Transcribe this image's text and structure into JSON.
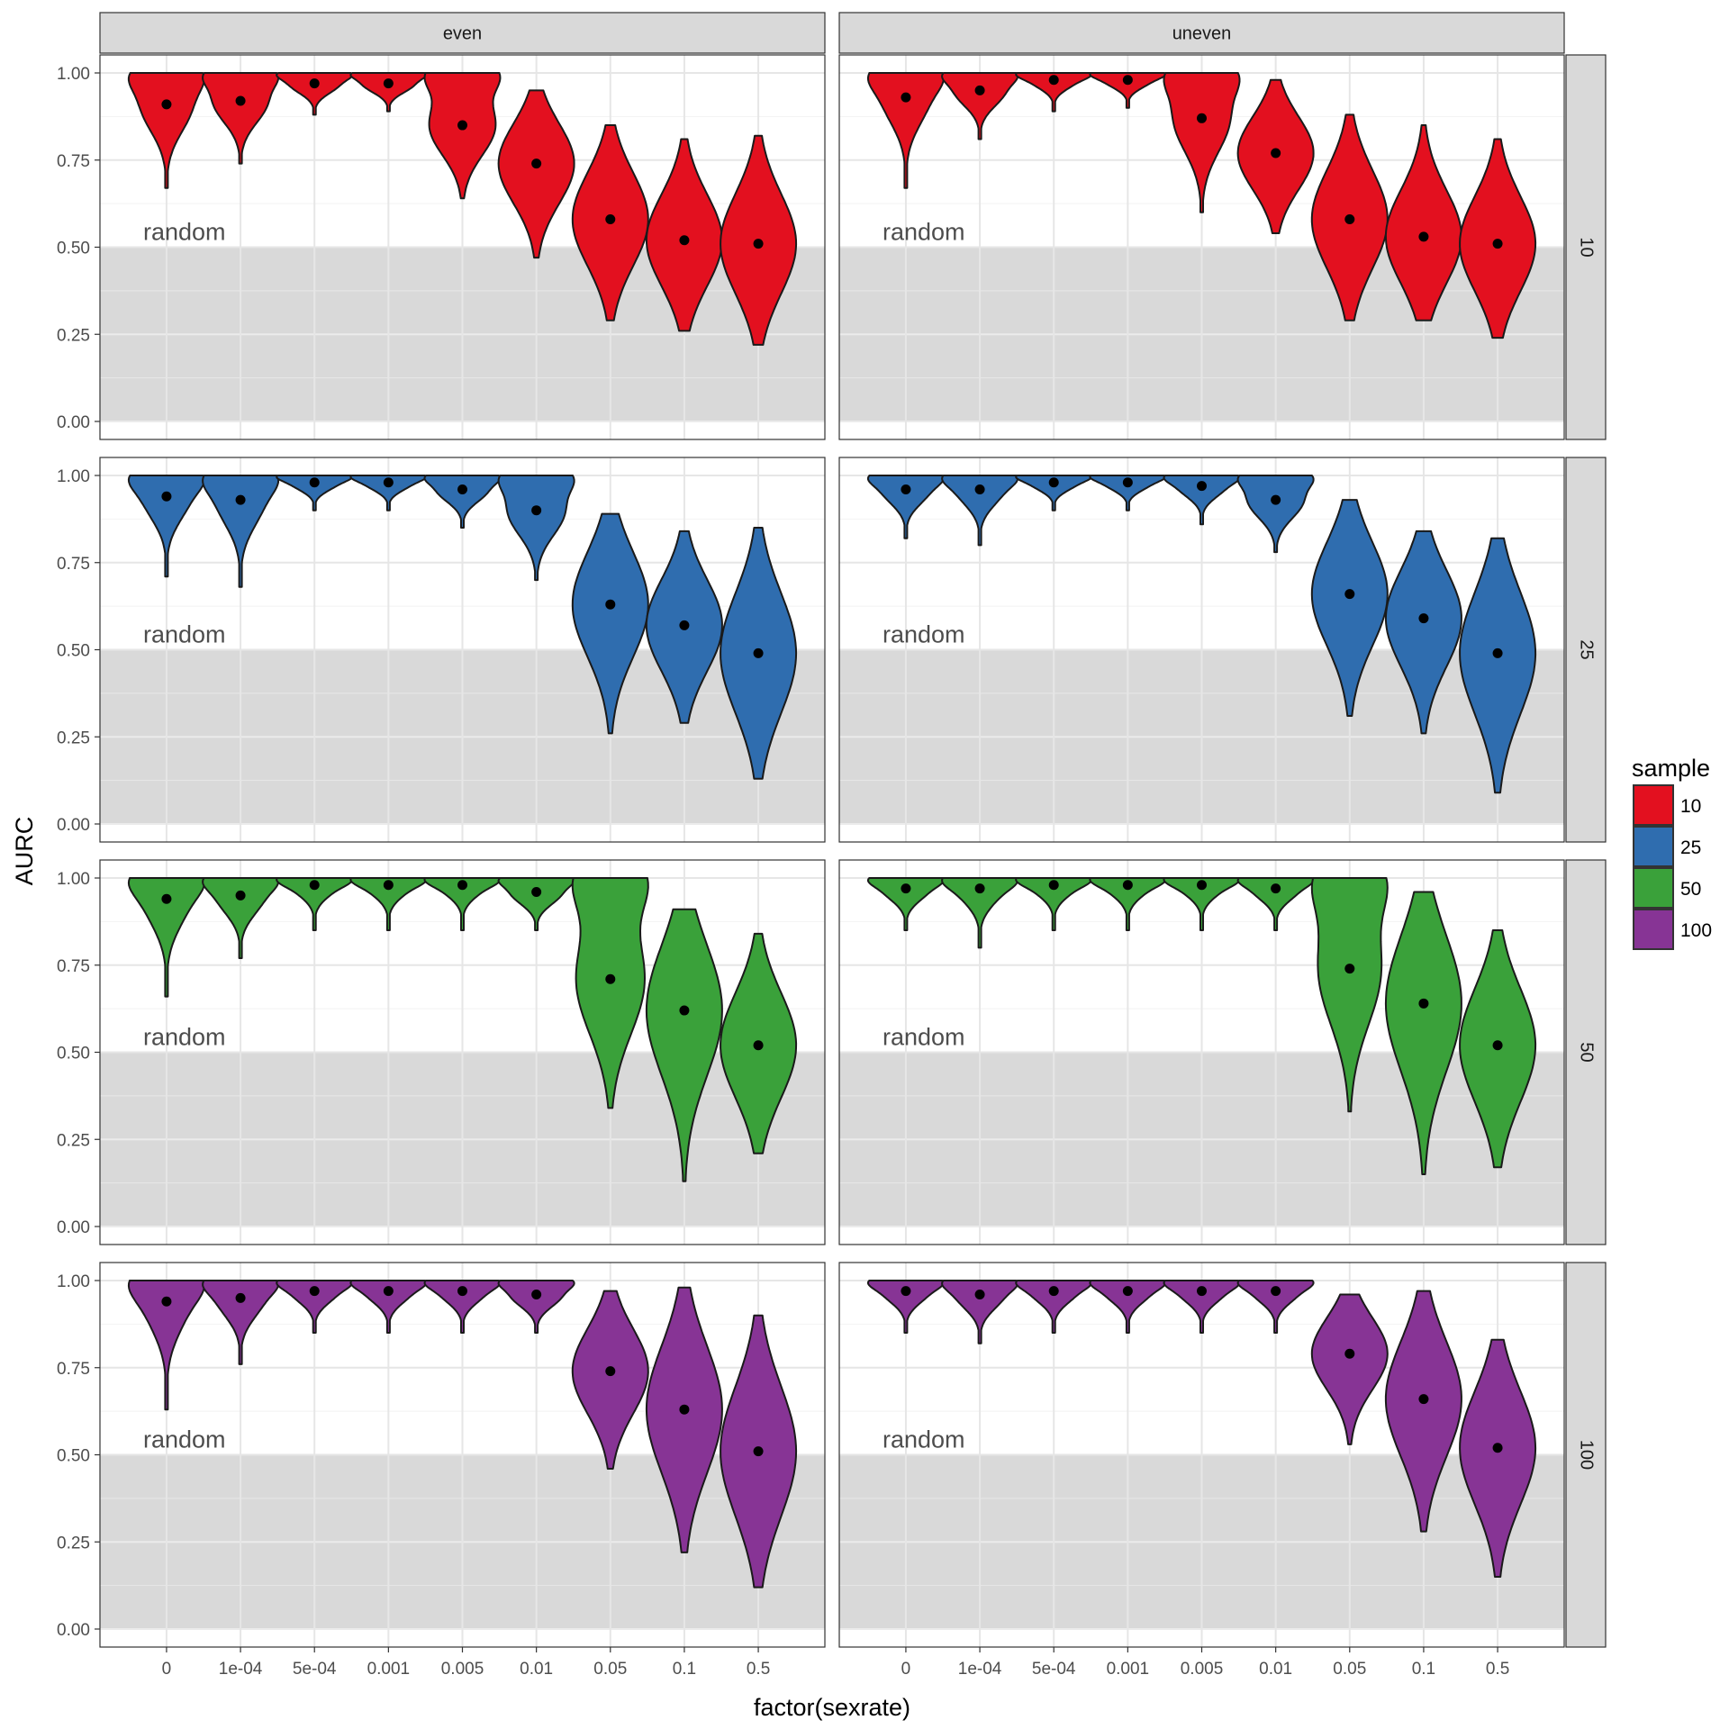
{
  "chart_data": {
    "type": "violin",
    "xlabel": "factor(sexrate)",
    "ylabel": "AURC",
    "categories": [
      "0",
      "1e-04",
      "5e-04",
      "0.001",
      "0.005",
      "0.01",
      "0.05",
      "0.1",
      "0.5"
    ],
    "ylim": [
      0,
      1
    ],
    "yticks": [
      "0.00",
      "0.25",
      "0.50",
      "0.75",
      "1.00"
    ],
    "shaded_region": {
      "from": 0,
      "to": 0.5,
      "label": "random"
    },
    "columns": [
      "even",
      "uneven"
    ],
    "rows": [
      "10",
      "25",
      "50",
      "100"
    ],
    "legend": {
      "title": "sample",
      "position": "right",
      "items": [
        {
          "label": "10",
          "color": "#e3101f"
        },
        {
          "label": "25",
          "color": "#2f6daf"
        },
        {
          "label": "50",
          "color": "#3aa13a"
        },
        {
          "label": "100",
          "color": "#873495"
        }
      ]
    },
    "grid": true,
    "panels": [
      {
        "column": "even",
        "row": "10",
        "series": [
          {
            "min": 0.67,
            "max": 1.0,
            "mean": 0.91
          },
          {
            "min": 0.74,
            "max": 1.0,
            "mean": 0.92
          },
          {
            "min": 0.88,
            "max": 1.0,
            "mean": 0.97
          },
          {
            "min": 0.89,
            "max": 1.0,
            "mean": 0.97
          },
          {
            "min": 0.64,
            "max": 1.0,
            "mean": 0.85
          },
          {
            "min": 0.47,
            "max": 0.95,
            "mean": 0.74
          },
          {
            "min": 0.29,
            "max": 0.85,
            "mean": 0.58
          },
          {
            "min": 0.26,
            "max": 0.81,
            "mean": 0.52
          },
          {
            "min": 0.22,
            "max": 0.82,
            "mean": 0.51
          }
        ]
      },
      {
        "column": "uneven",
        "row": "10",
        "series": [
          {
            "min": 0.67,
            "max": 1.0,
            "mean": 0.93
          },
          {
            "min": 0.81,
            "max": 1.0,
            "mean": 0.95
          },
          {
            "min": 0.89,
            "max": 1.0,
            "mean": 0.98
          },
          {
            "min": 0.9,
            "max": 1.0,
            "mean": 0.98
          },
          {
            "min": 0.6,
            "max": 1.0,
            "mean": 0.87
          },
          {
            "min": 0.54,
            "max": 0.98,
            "mean": 0.77
          },
          {
            "min": 0.29,
            "max": 0.88,
            "mean": 0.58
          },
          {
            "min": 0.29,
            "max": 0.85,
            "mean": 0.53
          },
          {
            "min": 0.24,
            "max": 0.81,
            "mean": 0.51
          }
        ]
      },
      {
        "column": "even",
        "row": "25",
        "series": [
          {
            "min": 0.71,
            "max": 1.0,
            "mean": 0.94
          },
          {
            "min": 0.68,
            "max": 1.0,
            "mean": 0.93
          },
          {
            "min": 0.9,
            "max": 1.0,
            "mean": 0.98
          },
          {
            "min": 0.9,
            "max": 1.0,
            "mean": 0.98
          },
          {
            "min": 0.85,
            "max": 1.0,
            "mean": 0.96
          },
          {
            "min": 0.7,
            "max": 1.0,
            "mean": 0.9
          },
          {
            "min": 0.26,
            "max": 0.89,
            "mean": 0.63
          },
          {
            "min": 0.29,
            "max": 0.84,
            "mean": 0.57
          },
          {
            "min": 0.13,
            "max": 0.85,
            "mean": 0.49
          }
        ]
      },
      {
        "column": "uneven",
        "row": "25",
        "series": [
          {
            "min": 0.82,
            "max": 1.0,
            "mean": 0.96
          },
          {
            "min": 0.8,
            "max": 1.0,
            "mean": 0.96
          },
          {
            "min": 0.9,
            "max": 1.0,
            "mean": 0.98
          },
          {
            "min": 0.9,
            "max": 1.0,
            "mean": 0.98
          },
          {
            "min": 0.86,
            "max": 1.0,
            "mean": 0.97
          },
          {
            "min": 0.78,
            "max": 1.0,
            "mean": 0.93
          },
          {
            "min": 0.31,
            "max": 0.93,
            "mean": 0.66
          },
          {
            "min": 0.26,
            "max": 0.84,
            "mean": 0.59
          },
          {
            "min": 0.09,
            "max": 0.82,
            "mean": 0.49
          }
        ]
      },
      {
        "column": "even",
        "row": "50",
        "series": [
          {
            "min": 0.66,
            "max": 1.0,
            "mean": 0.94
          },
          {
            "min": 0.77,
            "max": 1.0,
            "mean": 0.95
          },
          {
            "min": 0.85,
            "max": 1.0,
            "mean": 0.98
          },
          {
            "min": 0.85,
            "max": 1.0,
            "mean": 0.98
          },
          {
            "min": 0.85,
            "max": 1.0,
            "mean": 0.98
          },
          {
            "min": 0.85,
            "max": 1.0,
            "mean": 0.96
          },
          {
            "min": 0.34,
            "max": 1.0,
            "mean": 0.71
          },
          {
            "min": 0.13,
            "max": 0.91,
            "mean": 0.62
          },
          {
            "min": 0.21,
            "max": 0.84,
            "mean": 0.52
          }
        ]
      },
      {
        "column": "uneven",
        "row": "50",
        "series": [
          {
            "min": 0.85,
            "max": 1.0,
            "mean": 0.97
          },
          {
            "min": 0.8,
            "max": 1.0,
            "mean": 0.97
          },
          {
            "min": 0.85,
            "max": 1.0,
            "mean": 0.98
          },
          {
            "min": 0.85,
            "max": 1.0,
            "mean": 0.98
          },
          {
            "min": 0.85,
            "max": 1.0,
            "mean": 0.98
          },
          {
            "min": 0.85,
            "max": 1.0,
            "mean": 0.97
          },
          {
            "min": 0.33,
            "max": 1.0,
            "mean": 0.74
          },
          {
            "min": 0.15,
            "max": 0.96,
            "mean": 0.64
          },
          {
            "min": 0.17,
            "max": 0.85,
            "mean": 0.52
          }
        ]
      },
      {
        "column": "even",
        "row": "100",
        "series": [
          {
            "min": 0.63,
            "max": 1.0,
            "mean": 0.94
          },
          {
            "min": 0.76,
            "max": 1.0,
            "mean": 0.95
          },
          {
            "min": 0.85,
            "max": 1.0,
            "mean": 0.97
          },
          {
            "min": 0.85,
            "max": 1.0,
            "mean": 0.97
          },
          {
            "min": 0.85,
            "max": 1.0,
            "mean": 0.97
          },
          {
            "min": 0.85,
            "max": 1.0,
            "mean": 0.96
          },
          {
            "min": 0.46,
            "max": 0.97,
            "mean": 0.74
          },
          {
            "min": 0.22,
            "max": 0.98,
            "mean": 0.63
          },
          {
            "min": 0.12,
            "max": 0.9,
            "mean": 0.51
          }
        ]
      },
      {
        "column": "uneven",
        "row": "100",
        "series": [
          {
            "min": 0.85,
            "max": 1.0,
            "mean": 0.97
          },
          {
            "min": 0.82,
            "max": 1.0,
            "mean": 0.96
          },
          {
            "min": 0.85,
            "max": 1.0,
            "mean": 0.97
          },
          {
            "min": 0.85,
            "max": 1.0,
            "mean": 0.97
          },
          {
            "min": 0.85,
            "max": 1.0,
            "mean": 0.97
          },
          {
            "min": 0.85,
            "max": 1.0,
            "mean": 0.97
          },
          {
            "min": 0.53,
            "max": 0.96,
            "mean": 0.79
          },
          {
            "min": 0.28,
            "max": 0.97,
            "mean": 0.66
          },
          {
            "min": 0.15,
            "max": 0.83,
            "mean": 0.52
          }
        ]
      }
    ]
  }
}
